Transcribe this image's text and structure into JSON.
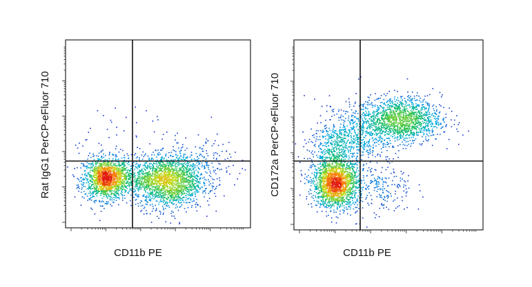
{
  "chart_data": [
    {
      "type": "scatter",
      "title": "",
      "xlabel": "CD11b PE",
      "ylabel": "Rat IgG1 PerCP-eFluor 710",
      "xlim": [
        0,
        1
      ],
      "ylim": [
        0,
        1
      ],
      "grid": false,
      "quadrant_gate": {
        "x": 0.35,
        "y": 0.35
      },
      "populations": [
        {
          "cx": 0.22,
          "cy": 0.26,
          "sx": 0.06,
          "sy": 0.055,
          "n": 1400
        },
        {
          "cx": 0.56,
          "cy": 0.24,
          "sx": 0.09,
          "sy": 0.07,
          "n": 1500
        },
        {
          "cx": 0.4,
          "cy": 0.27,
          "sx": 0.12,
          "sy": 0.045,
          "n": 500
        },
        {
          "cx": 0.7,
          "cy": 0.33,
          "sx": 0.1,
          "sy": 0.06,
          "n": 250
        },
        {
          "cx": 0.4,
          "cy": 0.45,
          "sx": 0.25,
          "sy": 0.1,
          "n": 80
        }
      ]
    },
    {
      "type": "scatter",
      "title": "",
      "xlabel": "CD11b PE",
      "ylabel": "CD172a PerCP-eFluor 710",
      "xlim": [
        0,
        1
      ],
      "ylim": [
        0,
        1
      ],
      "grid": false,
      "quadrant_gate": {
        "x": 0.35,
        "y": 0.35
      },
      "populations": [
        {
          "cx": 0.22,
          "cy": 0.24,
          "sx": 0.06,
          "sy": 0.06,
          "n": 1700
        },
        {
          "cx": 0.22,
          "cy": 0.42,
          "sx": 0.07,
          "sy": 0.09,
          "n": 600
        },
        {
          "cx": 0.56,
          "cy": 0.58,
          "sx": 0.11,
          "sy": 0.06,
          "n": 1500
        },
        {
          "cx": 0.36,
          "cy": 0.5,
          "sx": 0.08,
          "sy": 0.07,
          "n": 300
        },
        {
          "cx": 0.45,
          "cy": 0.22,
          "sx": 0.09,
          "sy": 0.08,
          "n": 250
        }
      ]
    }
  ]
}
